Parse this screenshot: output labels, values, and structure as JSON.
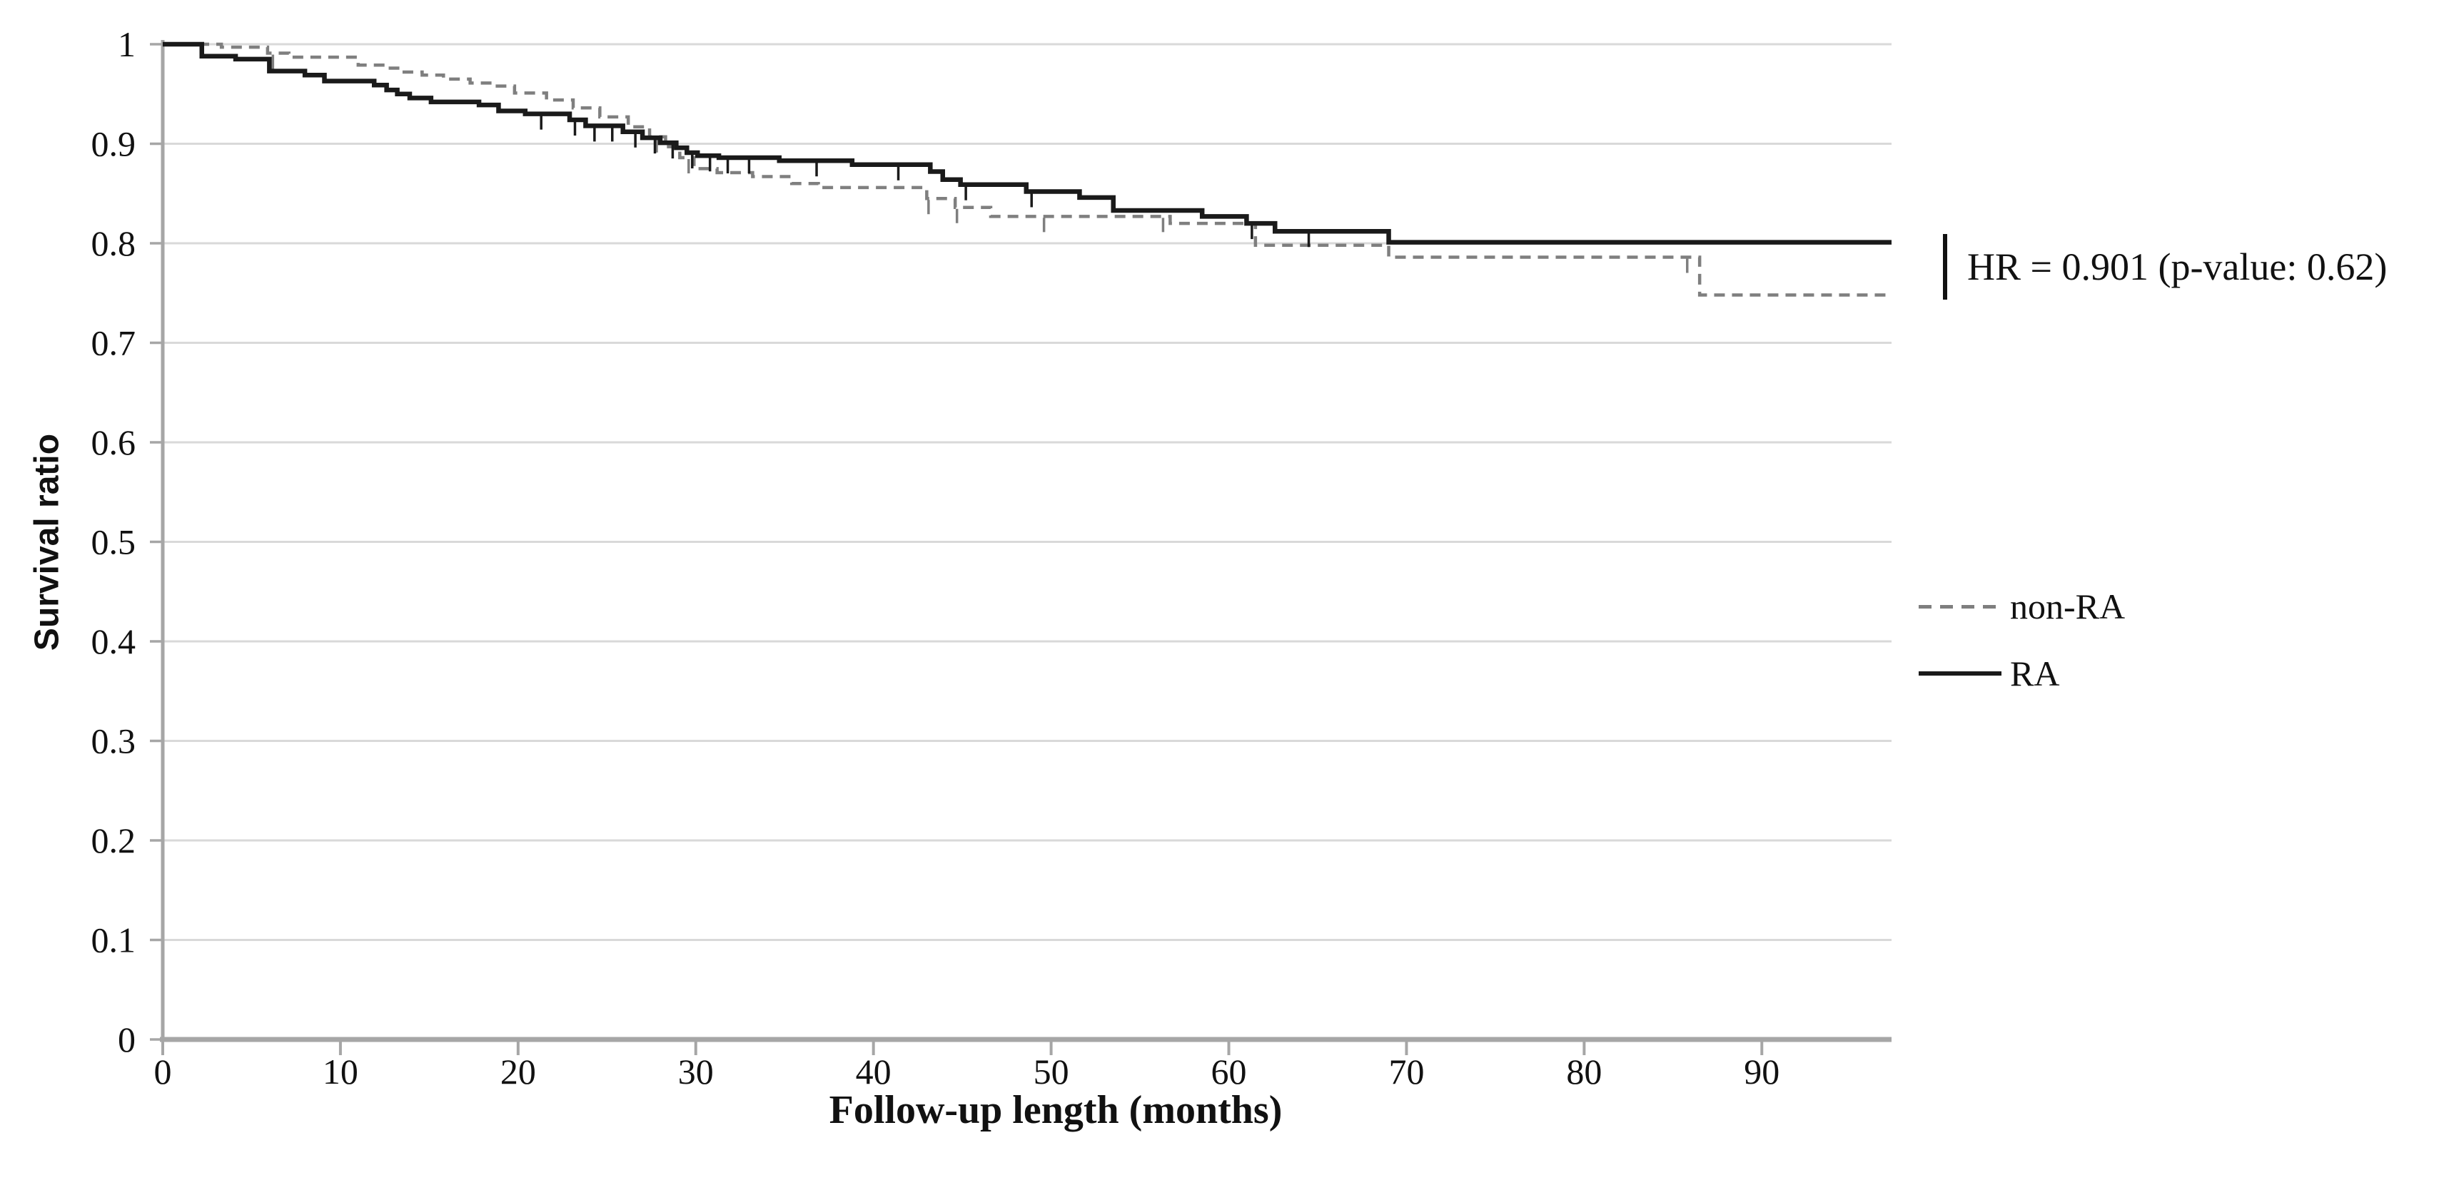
{
  "figure": {
    "background_color": "#ffffff",
    "gridline_color": "#d9d9d9",
    "axis_color": "#a6a6a6",
    "text_color": "#111111"
  },
  "chart_data": {
    "type": "line",
    "subtype": "kaplan-meier-step",
    "title": "",
    "xlabel": "Follow-up length (months)",
    "ylabel": "Survival ratio",
    "annotation": "HR = 0.901 (p-value: 0.62)",
    "xlim": [
      0,
      97.3
    ],
    "ylim": [
      0,
      1
    ],
    "grid": "horizontal",
    "legend_position": "right-middle",
    "x_ticks": [
      0,
      10,
      20,
      30,
      40,
      50,
      60,
      70,
      80,
      90
    ],
    "y_tick_values": [
      1,
      0.9,
      0.8,
      0.7,
      0.6,
      0.5,
      0.4,
      0.3,
      0.2,
      0.1,
      0
    ],
    "y_tick_labels": [
      "1",
      "0.9",
      "0.8",
      "0.7",
      "0.6",
      "0.5",
      "0.4",
      "0.3",
      "0.2",
      "0.1",
      "0"
    ],
    "series": [
      {
        "name": "non-RA",
        "color": "#7f7f7f",
        "line_style": "dashed",
        "steps": [
          [
            0,
            1.0
          ],
          [
            3.3,
            0.997
          ],
          [
            5.9,
            0.991
          ],
          [
            7.1,
            0.987
          ],
          [
            11.0,
            0.979
          ],
          [
            12.6,
            0.976
          ],
          [
            13.4,
            0.972
          ],
          [
            14.6,
            0.969
          ],
          [
            15.8,
            0.965
          ],
          [
            17.3,
            0.961
          ],
          [
            18.6,
            0.958
          ],
          [
            19.8,
            0.951
          ],
          [
            21.6,
            0.944
          ],
          [
            23.1,
            0.936
          ],
          [
            24.6,
            0.927
          ],
          [
            26.2,
            0.917
          ],
          [
            27.4,
            0.907
          ],
          [
            28.3,
            0.897
          ],
          [
            29.1,
            0.886
          ],
          [
            29.9,
            0.875
          ],
          [
            31.2,
            0.871
          ],
          [
            33.2,
            0.867
          ],
          [
            35.4,
            0.86
          ],
          [
            36.9,
            0.856
          ],
          [
            43.0,
            0.845
          ],
          [
            44.6,
            0.836
          ],
          [
            46.6,
            0.827
          ],
          [
            56.7,
            0.82
          ],
          [
            61.5,
            0.798
          ],
          [
            69.0,
            0.786
          ],
          [
            86.5,
            0.748
          ]
        ],
        "censor_marks": [
          6.2,
          27.8,
          29.6,
          43.1,
          44.7,
          49.6,
          56.3,
          85.8
        ]
      },
      {
        "name": "RA",
        "color": "#1a1a1a",
        "line_style": "solid",
        "steps": [
          [
            0,
            1.0
          ],
          [
            2.2,
            0.988
          ],
          [
            4.1,
            0.985
          ],
          [
            6.0,
            0.973
          ],
          [
            8.0,
            0.969
          ],
          [
            9.1,
            0.963
          ],
          [
            11.9,
            0.959
          ],
          [
            12.6,
            0.954
          ],
          [
            13.2,
            0.95
          ],
          [
            13.9,
            0.946
          ],
          [
            15.1,
            0.942
          ],
          [
            17.8,
            0.939
          ],
          [
            18.9,
            0.933
          ],
          [
            20.4,
            0.93
          ],
          [
            22.9,
            0.924
          ],
          [
            23.8,
            0.918
          ],
          [
            25.9,
            0.912
          ],
          [
            27.0,
            0.906
          ],
          [
            28.0,
            0.901
          ],
          [
            28.9,
            0.896
          ],
          [
            29.5,
            0.891
          ],
          [
            30.1,
            0.888
          ],
          [
            31.3,
            0.886
          ],
          [
            34.7,
            0.883
          ],
          [
            38.8,
            0.879
          ],
          [
            43.2,
            0.872
          ],
          [
            43.9,
            0.864
          ],
          [
            44.9,
            0.859
          ],
          [
            48.6,
            0.852
          ],
          [
            51.6,
            0.846
          ],
          [
            53.5,
            0.833
          ],
          [
            58.5,
            0.827
          ],
          [
            61.0,
            0.82
          ],
          [
            62.6,
            0.812
          ],
          [
            69.0,
            0.801
          ]
        ],
        "censor_marks": [
          21.3,
          23.2,
          24.3,
          25.3,
          26.6,
          27.7,
          28.7,
          29.8,
          30.8,
          31.8,
          33.0,
          36.8,
          41.4,
          45.2,
          48.9,
          61.3,
          64.5
        ]
      }
    ]
  }
}
